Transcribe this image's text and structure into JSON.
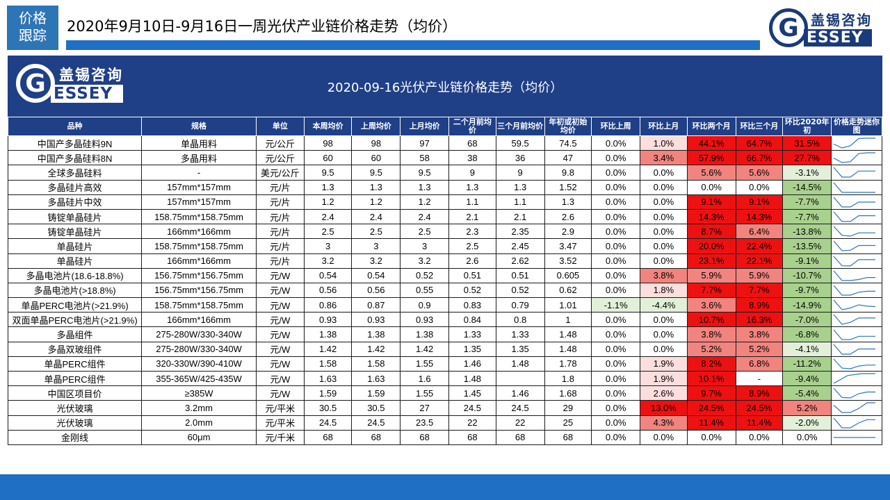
{
  "tag": {
    "line1": "价格",
    "line2": "跟踪"
  },
  "slide_title": "2020年9月10日-9月16日一周光伏产业链价格走势（均价）",
  "logo": {
    "mark": "G",
    "cn": "盖锡咨询",
    "en": "ESSEY"
  },
  "table": {
    "title": "2020-09-16光伏产业链价格走势（均价）",
    "headers": [
      "品种",
      "规格",
      "单位",
      "本周均价",
      "上周均价",
      "上月均价",
      "二个月前均价",
      "三个月前均价",
      "年初或初始均价",
      "环比上周",
      "环比上月",
      "环比两个月",
      "环比三个月",
      "环比2020年初",
      "价格走势迷你图"
    ],
    "colors": {
      "header_bg": "#1f3f87",
      "red_strong": "#ee1111",
      "red_mid": "#f1847e",
      "red_light": "#fbdede",
      "green_mid": "#a9d18e",
      "green_light": "#e2f0d9",
      "spark": "#2e75b6"
    },
    "rows": [
      {
        "c": [
          "中国产多晶硅料9N",
          "单晶用料",
          "元/公斤",
          "98",
          "98",
          "97",
          "68",
          "59.5",
          "74.5",
          "0.0%",
          "1.0%",
          "44.1%",
          "64.7%",
          "31.5%"
        ],
        "trend": [
          74.5,
          59.5,
          68,
          97,
          98,
          98
        ]
      },
      {
        "c": [
          "中国产多晶硅料8N",
          "多晶用料",
          "元/公斤",
          "60",
          "60",
          "58",
          "38",
          "36",
          "47",
          "0.0%",
          "3.4%",
          "57.9%",
          "66.7%",
          "27.7%"
        ],
        "trend": [
          47,
          36,
          38,
          58,
          60,
          60
        ]
      },
      {
        "c": [
          "全球多晶硅料",
          "-",
          "美元/公斤",
          "9.5",
          "9.5",
          "9.5",
          "9",
          "9",
          "9.8",
          "0.0%",
          "0.0%",
          "5.6%",
          "5.6%",
          "-3.1%"
        ],
        "trend": [
          9.8,
          9,
          9,
          9.5,
          9.5,
          9.5
        ]
      },
      {
        "c": [
          "多晶硅片高效",
          "157mm*157mm",
          "元/片",
          "1.3",
          "1.3",
          "1.3",
          "1.3",
          "1.3",
          "1.52",
          "0.0%",
          "0.0%",
          "0.0%",
          "0.0%",
          "-14.5%"
        ],
        "trend": [
          1.52,
          1.3,
          1.3,
          1.3,
          1.3,
          1.3
        ]
      },
      {
        "c": [
          "多晶硅片中效",
          "157mm*157mm",
          "元/片",
          "1.2",
          "1.2",
          "1.2",
          "1.1",
          "1.1",
          "1.3",
          "0.0%",
          "0.0%",
          "9.1%",
          "9.1%",
          "-7.7%"
        ],
        "trend": [
          1.3,
          1.1,
          1.1,
          1.2,
          1.2,
          1.2
        ]
      },
      {
        "c": [
          "铸锭单晶硅片",
          "158.75mm*158.75mm",
          "元/片",
          "2.4",
          "2.4",
          "2.4",
          "2.1",
          "2.1",
          "2.6",
          "0.0%",
          "0.0%",
          "14.3%",
          "14.3%",
          "-7.7%"
        ],
        "trend": [
          2.6,
          2.1,
          2.1,
          2.4,
          2.4,
          2.4
        ]
      },
      {
        "c": [
          "铸锭单晶硅片",
          "166mm*166mm",
          "元/片",
          "2.5",
          "2.5",
          "2.5",
          "2.3",
          "2.35",
          "2.9",
          "0.0%",
          "0.0%",
          "8.7%",
          "6.4%",
          "-13.8%"
        ],
        "trend": [
          2.9,
          2.35,
          2.3,
          2.5,
          2.5,
          2.5
        ]
      },
      {
        "c": [
          "单晶硅片",
          "158.75mm*158.75mm",
          "元/片",
          "3",
          "3",
          "3",
          "2.5",
          "2.45",
          "3.47",
          "0.0%",
          "0.0%",
          "20.0%",
          "22.4%",
          "-13.5%"
        ],
        "trend": [
          3.47,
          2.45,
          2.5,
          3,
          3,
          3
        ]
      },
      {
        "c": [
          "单晶硅片",
          "166mm*166mm",
          "元/片",
          "3.2",
          "3.2",
          "3.2",
          "2.6",
          "2.62",
          "3.52",
          "0.0%",
          "0.0%",
          "23.1%",
          "22.1%",
          "-9.1%"
        ],
        "trend": [
          3.52,
          2.62,
          2.6,
          3.2,
          3.2,
          3.2
        ]
      },
      {
        "c": [
          "多晶电池片(18.6-18.8%)",
          "156.75mm*156.75mm",
          "元/W",
          "0.54",
          "0.54",
          "0.52",
          "0.51",
          "0.51",
          "0.605",
          "0.0%",
          "3.8%",
          "5.9%",
          "5.9%",
          "-10.7%"
        ],
        "trend": [
          0.605,
          0.51,
          0.51,
          0.52,
          0.54,
          0.54
        ]
      },
      {
        "c": [
          "多晶电池片(>18.8%)",
          "156.75mm*156.75mm",
          "元/W",
          "0.56",
          "0.56",
          "0.55",
          "0.52",
          "0.52",
          "0.62",
          "0.0%",
          "1.8%",
          "7.7%",
          "7.7%",
          "-9.7%"
        ],
        "trend": [
          0.62,
          0.52,
          0.52,
          0.55,
          0.56,
          0.56
        ]
      },
      {
        "c": [
          "单晶PERC电池片(>21.9%)",
          "158.75mm*158.75mm",
          "元/W",
          "0.86",
          "0.87",
          "0.9",
          "0.83",
          "0.79",
          "1.01",
          "-1.1%",
          "-4.4%",
          "3.6%",
          "8.9%",
          "-14.9%"
        ],
        "trend": [
          1.01,
          0.79,
          0.83,
          0.9,
          0.87,
          0.86
        ]
      },
      {
        "c": [
          "双面单晶PERC电池片(>21.9%)",
          "166mm*166mm",
          "元/W",
          "0.93",
          "0.93",
          "0.93",
          "0.84",
          "0.8",
          "1",
          "0.0%",
          "0.0%",
          "10.7%",
          "16.3%",
          "-7.0%"
        ],
        "trend": [
          1,
          0.8,
          0.84,
          0.93,
          0.93,
          0.93
        ]
      },
      {
        "c": [
          "多晶组件",
          "275-280W/330-340W",
          "元/W",
          "1.38",
          "1.38",
          "1.38",
          "1.33",
          "1.33",
          "1.48",
          "0.0%",
          "0.0%",
          "3.8%",
          "3.8%",
          "-6.8%"
        ],
        "trend": [
          1.48,
          1.33,
          1.33,
          1.38,
          1.38,
          1.38
        ]
      },
      {
        "c": [
          "多晶双玻组件",
          "275-280W/330-340W",
          "元/W",
          "1.42",
          "1.42",
          "1.42",
          "1.35",
          "1.35",
          "1.48",
          "0.0%",
          "0.0%",
          "5.2%",
          "5.2%",
          "-4.1%"
        ],
        "trend": [
          1.48,
          1.35,
          1.35,
          1.42,
          1.42,
          1.42
        ]
      },
      {
        "c": [
          "单晶PERC组件",
          "320-330W/390-410W",
          "元/W",
          "1.58",
          "1.58",
          "1.55",
          "1.46",
          "1.48",
          "1.78",
          "0.0%",
          "1.9%",
          "8.2%",
          "6.8%",
          "-11.2%"
        ],
        "trend": [
          1.78,
          1.48,
          1.46,
          1.55,
          1.58,
          1.58
        ]
      },
      {
        "c": [
          "单晶PERC组件",
          "355-365W/425-435W",
          "元/W",
          "1.63",
          "1.63",
          "1.6",
          "1.48",
          "",
          "1.8",
          "0.0%",
          "1.9%",
          "10.1%",
          "-",
          "-9.4%"
        ],
        "trend": [
          1.48,
          1.6,
          1.63,
          1.63
        ]
      },
      {
        "c": [
          "中国区项目价",
          "≥385W",
          "元/W",
          "1.59",
          "1.59",
          "1.55",
          "1.45",
          "1.46",
          "1.68",
          "0.0%",
          "2.6%",
          "9.7%",
          "8.9%",
          "-5.4%"
        ],
        "trend": [
          1.68,
          1.46,
          1.45,
          1.55,
          1.59,
          1.59
        ]
      },
      {
        "c": [
          "光伏玻璃",
          "3.2mm",
          "元/平米",
          "30.5",
          "30.5",
          "27",
          "24.5",
          "24.5",
          "29",
          "0.0%",
          "13.0%",
          "24.5%",
          "24.5%",
          "5.2%"
        ],
        "trend": [
          29,
          24.5,
          24.5,
          27,
          30.5,
          30.5
        ]
      },
      {
        "c": [
          "光伏玻璃",
          "2.0mm",
          "元/平米",
          "24.5",
          "24.5",
          "23.5",
          "22",
          "22",
          "25",
          "0.0%",
          "4.3%",
          "11.4%",
          "11.4%",
          "-2.0%"
        ],
        "trend": [
          25,
          22,
          22,
          23.5,
          24.5,
          24.5
        ]
      },
      {
        "c": [
          "金刚线",
          "60μm",
          "元/千米",
          "68",
          "68",
          "68",
          "68",
          "68",
          "68",
          "0.0%",
          "0.0%",
          "0.0%",
          "0.0%",
          "0.0%"
        ],
        "trend": [
          68,
          68,
          68,
          68,
          68,
          68
        ]
      }
    ]
  }
}
